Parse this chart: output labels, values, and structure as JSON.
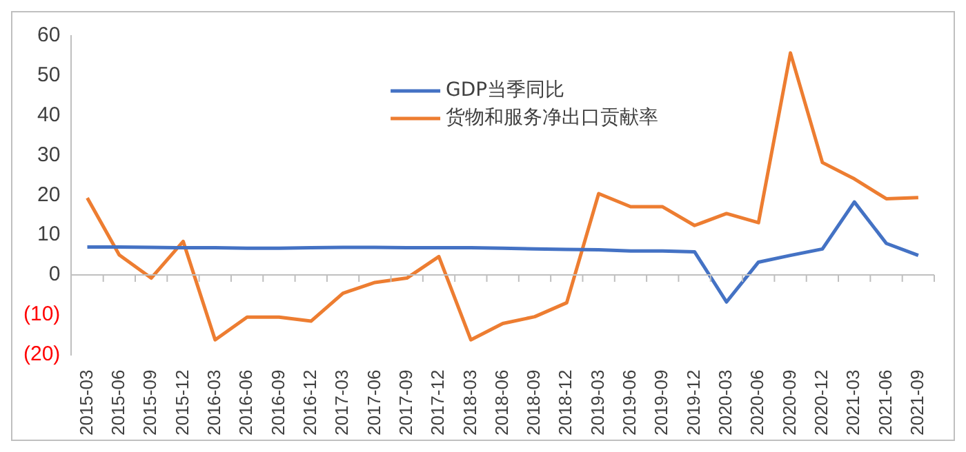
{
  "chart_data": {
    "type": "line",
    "categories": [
      "2015-03",
      "2015-06",
      "2015-09",
      "2015-12",
      "2016-03",
      "2016-06",
      "2016-09",
      "2016-12",
      "2017-03",
      "2017-06",
      "2017-09",
      "2017-12",
      "2018-03",
      "2018-06",
      "2018-09",
      "2018-12",
      "2019-03",
      "2019-06",
      "2019-09",
      "2019-12",
      "2020-03",
      "2020-06",
      "2020-09",
      "2020-12",
      "2021-03",
      "2021-06",
      "2021-09"
    ],
    "series": [
      {
        "name": "GDP当季同比",
        "color": "#4472c4",
        "values": [
          7.0,
          7.0,
          6.9,
          6.8,
          6.8,
          6.7,
          6.7,
          6.8,
          6.9,
          6.9,
          6.8,
          6.8,
          6.8,
          6.7,
          6.5,
          6.4,
          6.3,
          6.0,
          6.0,
          5.8,
          -6.8,
          3.2,
          4.9,
          6.5,
          18.3,
          7.9,
          4.9
        ]
      },
      {
        "name": "货物和服务净出口贡献率",
        "color": "#ed7d31",
        "values": [
          19.3,
          5.0,
          -0.8,
          8.4,
          -16.3,
          -10.6,
          -10.6,
          -11.6,
          -4.6,
          -1.9,
          -0.8,
          4.6,
          -16.3,
          -12.2,
          -10.5,
          -7.0,
          20.4,
          17.1,
          17.1,
          12.4,
          15.4,
          13.1,
          55.7,
          28.2,
          24.1,
          19.1,
          19.4
        ]
      }
    ],
    "ylim": [
      -20,
      60
    ],
    "yticks": [
      {
        "value": -20,
        "label": "(20)"
      },
      {
        "value": -10,
        "label": "(10)"
      },
      0,
      10,
      20,
      30,
      40,
      50,
      60
    ],
    "legend": "top",
    "marker": "none",
    "line_style": "solid"
  }
}
